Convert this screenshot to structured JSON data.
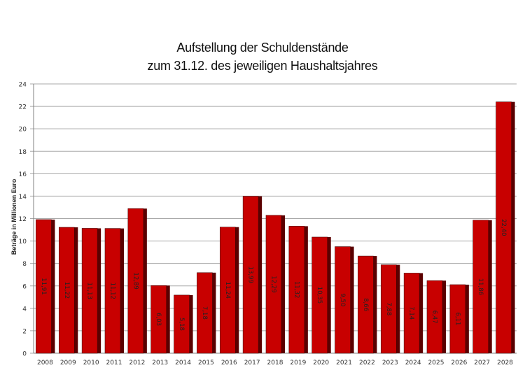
{
  "chart_data": {
    "type": "bar",
    "title": "Aufstellung der Schuldenstände zum 31.12. des jeweiligen Haushaltsjahres",
    "title_lines": [
      "Aufstellung der Schuldenstände",
      "zum 31.12. des jeweiligen Haushaltsjahres"
    ],
    "xlabel": "",
    "ylabel": "Beträge in Millionen Euro",
    "ylim": [
      0,
      24
    ],
    "yticks": [
      0,
      2,
      4,
      6,
      8,
      10,
      12,
      14,
      16,
      18,
      20,
      22,
      24
    ],
    "grid": true,
    "legend": null,
    "categories": [
      "2008",
      "2009",
      "2010",
      "2011",
      "2012",
      "2013",
      "2014",
      "2015",
      "2016",
      "2017",
      "2018",
      "2019",
      "2020",
      "2021",
      "2022",
      "2023",
      "2024",
      "2025",
      "2026",
      "2027",
      "2028"
    ],
    "values": [
      11.91,
      11.22,
      11.13,
      11.12,
      12.89,
      6.03,
      5.18,
      7.18,
      11.24,
      13.99,
      12.29,
      11.32,
      10.35,
      9.5,
      8.66,
      7.88,
      7.14,
      6.47,
      6.11,
      11.86,
      22.4
    ],
    "value_labels": [
      "11,91",
      "11,22",
      "11,13",
      "11,12",
      "12,89",
      "6,03",
      "5,18",
      "7,18",
      "11,24",
      "13,99",
      "12,29",
      "11,32",
      "10,35",
      "9,50",
      "8,66",
      "7,88",
      "7,14",
      "6,47",
      "6,11",
      "11,86",
      "22,40"
    ],
    "colors": {
      "bar": "#c80000",
      "bar_side": "#5a0000",
      "grid": "#a8a8a8",
      "axis": "#808080"
    }
  }
}
